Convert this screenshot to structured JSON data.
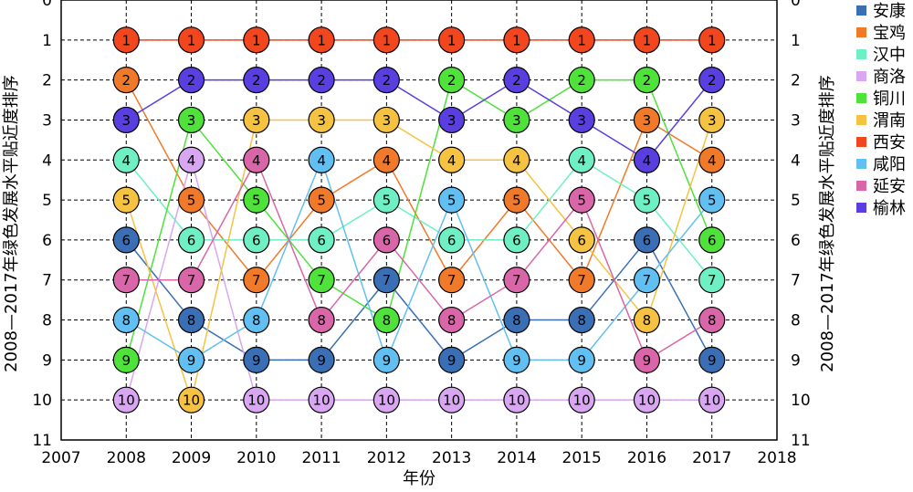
{
  "chart_data": {
    "type": "line",
    "xlabel": "年份",
    "ylabel": "2008—2017年绿色发展水平贴近度排序",
    "ylabel_right": "2008—2017年绿色发展水平贴近度排序",
    "xlim": [
      2007,
      2018
    ],
    "ylim": [
      0,
      11
    ],
    "y_inverted": true,
    "grid": true,
    "legend_position": "right",
    "x_ticks": [
      "2007",
      "2008",
      "2009",
      "2010",
      "2011",
      "2012",
      "2013",
      "2014",
      "2015",
      "2016",
      "2017",
      "2018"
    ],
    "y_ticks": [
      "0",
      "1",
      "2",
      "3",
      "4",
      "5",
      "6",
      "7",
      "8",
      "9",
      "10",
      "11"
    ],
    "x": [
      2008,
      2009,
      2010,
      2011,
      2012,
      2013,
      2014,
      2015,
      2016,
      2017
    ],
    "series": [
      {
        "name": "安康",
        "color": "#3a6fb5",
        "values": [
          6,
          8,
          9,
          9,
          7,
          9,
          8,
          8,
          6,
          9
        ]
      },
      {
        "name": "宝鸡",
        "color": "#f07a2a",
        "values": [
          2,
          5,
          7,
          5,
          4,
          7,
          5,
          7,
          3,
          4
        ]
      },
      {
        "name": "汉中",
        "color": "#6ef0c4",
        "values": [
          4,
          6,
          6,
          6,
          5,
          6,
          6,
          4,
          5,
          7
        ]
      },
      {
        "name": "商洛",
        "color": "#d9a6f2",
        "values": [
          10,
          4,
          10,
          10,
          10,
          10,
          10,
          10,
          10,
          10
        ]
      },
      {
        "name": "铜川",
        "color": "#4ee23a",
        "values": [
          9,
          3,
          5,
          7,
          8,
          2,
          3,
          2,
          2,
          6
        ]
      },
      {
        "name": "渭南",
        "color": "#f5c242",
        "values": [
          5,
          10,
          3,
          3,
          3,
          4,
          4,
          6,
          8,
          3
        ]
      },
      {
        "name": "西安",
        "color": "#f2461e",
        "values": [
          1,
          1,
          1,
          1,
          1,
          1,
          1,
          1,
          1,
          1
        ]
      },
      {
        "name": "咸阳",
        "color": "#62bff2",
        "values": [
          8,
          9,
          8,
          4,
          9,
          5,
          9,
          9,
          7,
          5
        ]
      },
      {
        "name": "延安",
        "color": "#d966a8",
        "values": [
          7,
          7,
          4,
          8,
          6,
          8,
          7,
          5,
          9,
          8
        ]
      },
      {
        "name": "榆林",
        "color": "#5a3fe0",
        "values": [
          3,
          2,
          2,
          2,
          2,
          3,
          2,
          3,
          4,
          2
        ]
      }
    ]
  }
}
